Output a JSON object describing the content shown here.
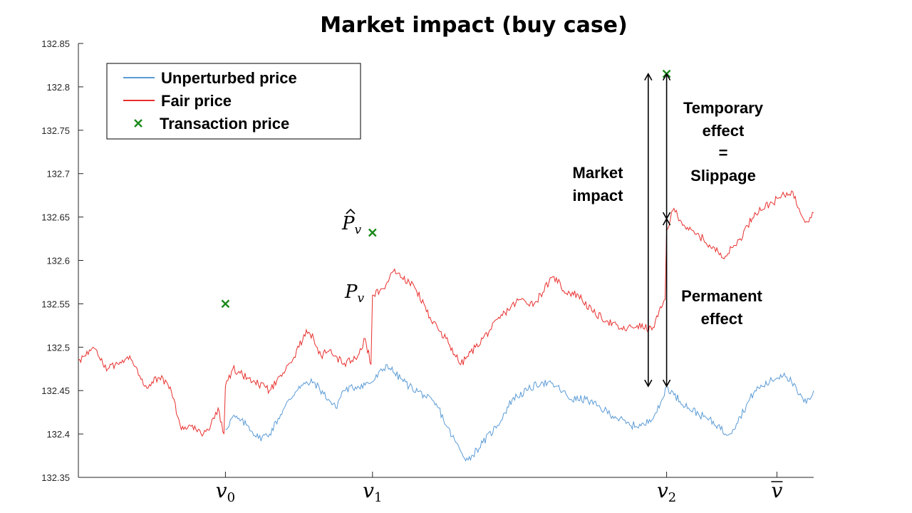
{
  "chart_data": {
    "type": "line",
    "title": "Market impact (buy case)",
    "ylim": [
      132.35,
      132.85
    ],
    "xlim": [
      0,
      100
    ],
    "y_ticks": [
      "132.35",
      "132.4",
      "132.45",
      "132.5",
      "132.55",
      "132.6",
      "132.65",
      "132.7",
      "132.75",
      "132.8",
      "132.85"
    ],
    "x_ticks": [
      {
        "x": 20,
        "main": "v",
        "sub": "0",
        "bar": false
      },
      {
        "x": 40,
        "main": "v",
        "sub": "1",
        "bar": false
      },
      {
        "x": 80,
        "main": "v",
        "sub": "2",
        "bar": false
      },
      {
        "x": 95,
        "main": "v",
        "sub": "",
        "bar": true
      }
    ],
    "legend": {
      "position": "top-left",
      "entries": [
        {
          "label": "Unperturbed price",
          "color": "#5b9bd5",
          "marker": "line"
        },
        {
          "label": "Fair price",
          "color": "#e8302e",
          "marker": "line"
        },
        {
          "label": "Transaction price",
          "color": "#1a8a1a",
          "marker": "x"
        }
      ]
    },
    "series": [
      {
        "name": "Unperturbed price",
        "color": "#5b9bd5",
        "x_start": 20,
        "anchors": [
          [
            20,
            132.405
          ],
          [
            21,
            132.42
          ],
          [
            23,
            132.41
          ],
          [
            24.5,
            132.395
          ],
          [
            26,
            132.4
          ],
          [
            28,
            132.43
          ],
          [
            30,
            132.455
          ],
          [
            32,
            132.46
          ],
          [
            34,
            132.44
          ],
          [
            35,
            132.43
          ],
          [
            36,
            132.45
          ],
          [
            38,
            132.455
          ],
          [
            40,
            132.46
          ],
          [
            42,
            132.48
          ],
          [
            43,
            132.47
          ],
          [
            45,
            132.455
          ],
          [
            47,
            132.445
          ],
          [
            49,
            132.43
          ],
          [
            50,
            132.41
          ],
          [
            52,
            132.38
          ],
          [
            53,
            132.37
          ],
          [
            55,
            132.39
          ],
          [
            57,
            132.41
          ],
          [
            59,
            132.44
          ],
          [
            61,
            132.45
          ],
          [
            63,
            132.46
          ],
          [
            65,
            132.455
          ],
          [
            67,
            132.44
          ],
          [
            69,
            132.44
          ],
          [
            71,
            132.43
          ],
          [
            73,
            132.42
          ],
          [
            75,
            132.41
          ],
          [
            77,
            132.41
          ],
          [
            79,
            132.43
          ],
          [
            80,
            132.455
          ],
          [
            81,
            132.445
          ],
          [
            83,
            132.43
          ],
          [
            85,
            132.42
          ],
          [
            87,
            132.41
          ],
          [
            88,
            132.4
          ],
          [
            89,
            132.405
          ],
          [
            90,
            132.42
          ],
          [
            92,
            132.45
          ],
          [
            94,
            132.46
          ],
          [
            96,
            132.47
          ],
          [
            97,
            132.46
          ],
          [
            98,
            132.445
          ],
          [
            99,
            132.435
          ],
          [
            100,
            132.45
          ]
        ]
      },
      {
        "name": "Fair price",
        "color": "#e8302e",
        "x_start": 0,
        "anchors": [
          [
            0,
            132.485
          ],
          [
            1,
            132.49
          ],
          [
            2,
            132.5
          ],
          [
            3,
            132.485
          ],
          [
            4,
            132.475
          ],
          [
            5,
            132.48
          ],
          [
            6,
            132.485
          ],
          [
            7,
            132.49
          ],
          [
            8,
            132.475
          ],
          [
            9,
            132.455
          ],
          [
            10,
            132.46
          ],
          [
            11,
            132.465
          ],
          [
            12,
            132.46
          ],
          [
            13,
            132.44
          ],
          [
            13.5,
            132.42
          ],
          [
            14,
            132.405
          ],
          [
            15,
            132.41
          ],
          [
            16,
            132.405
          ],
          [
            17,
            132.4
          ],
          [
            18,
            132.41
          ],
          [
            19,
            132.43
          ],
          [
            19.8,
            132.4
          ],
          [
            20,
            132.455
          ],
          [
            21,
            132.475
          ],
          [
            22,
            132.47
          ],
          [
            24,
            132.46
          ],
          [
            26,
            132.45
          ],
          [
            28,
            132.47
          ],
          [
            30,
            132.5
          ],
          [
            31,
            132.52
          ],
          [
            32,
            132.51
          ],
          [
            33,
            132.49
          ],
          [
            34,
            132.495
          ],
          [
            35,
            132.49
          ],
          [
            36,
            132.48
          ],
          [
            38,
            132.49
          ],
          [
            39,
            132.51
          ],
          [
            39.8,
            132.48
          ],
          [
            40,
            132.56
          ],
          [
            41,
            132.565
          ],
          [
            42,
            132.575
          ],
          [
            43,
            132.59
          ],
          [
            44,
            132.58
          ],
          [
            45,
            132.575
          ],
          [
            46,
            132.565
          ],
          [
            47,
            132.55
          ],
          [
            48,
            132.53
          ],
          [
            50,
            132.51
          ],
          [
            52,
            132.48
          ],
          [
            54,
            132.5
          ],
          [
            56,
            132.52
          ],
          [
            58,
            132.54
          ],
          [
            60,
            132.555
          ],
          [
            62,
            132.55
          ],
          [
            64,
            132.575
          ],
          [
            65,
            132.58
          ],
          [
            66,
            132.565
          ],
          [
            68,
            132.56
          ],
          [
            70,
            132.54
          ],
          [
            72,
            132.53
          ],
          [
            74,
            132.52
          ],
          [
            76,
            132.525
          ],
          [
            78,
            132.52
          ],
          [
            79.8,
            132.555
          ],
          [
            80,
            132.635
          ],
          [
            81,
            132.66
          ],
          [
            82,
            132.645
          ],
          [
            83,
            132.635
          ],
          [
            84,
            132.63
          ],
          [
            85,
            132.625
          ],
          [
            86,
            132.615
          ],
          [
            87,
            132.61
          ],
          [
            88,
            132.605
          ],
          [
            89,
            132.615
          ],
          [
            90,
            132.625
          ],
          [
            91,
            132.64
          ],
          [
            92,
            132.655
          ],
          [
            94,
            132.665
          ],
          [
            96,
            132.675
          ],
          [
            97,
            132.68
          ],
          [
            98,
            132.66
          ],
          [
            99,
            132.645
          ],
          [
            100,
            132.655
          ]
        ]
      }
    ],
    "transaction_prices": [
      {
        "x": 20,
        "y": 132.55
      },
      {
        "x": 40,
        "y": 132.632
      },
      {
        "x": 80,
        "y": 132.815
      }
    ],
    "annotations": {
      "p_hat_main": "P",
      "p_hat_sub": "v",
      "p_main": "P",
      "p_sub": "v",
      "market_impact": [
        "Market",
        "impact"
      ],
      "temporary": [
        "Temporary",
        "effect",
        "=",
        "Slippage"
      ],
      "permanent": [
        "Permanent",
        "effect"
      ]
    },
    "arrows": [
      {
        "name": "market-impact-arrow",
        "x": 77.5,
        "y1": 132.455,
        "y2": 132.815
      },
      {
        "name": "temporary-effect-arrow",
        "x": 80,
        "y1": 132.648,
        "y2": 132.815
      },
      {
        "name": "permanent-effect-arrow",
        "x": 80,
        "y1": 132.455,
        "y2": 132.648
      }
    ]
  }
}
